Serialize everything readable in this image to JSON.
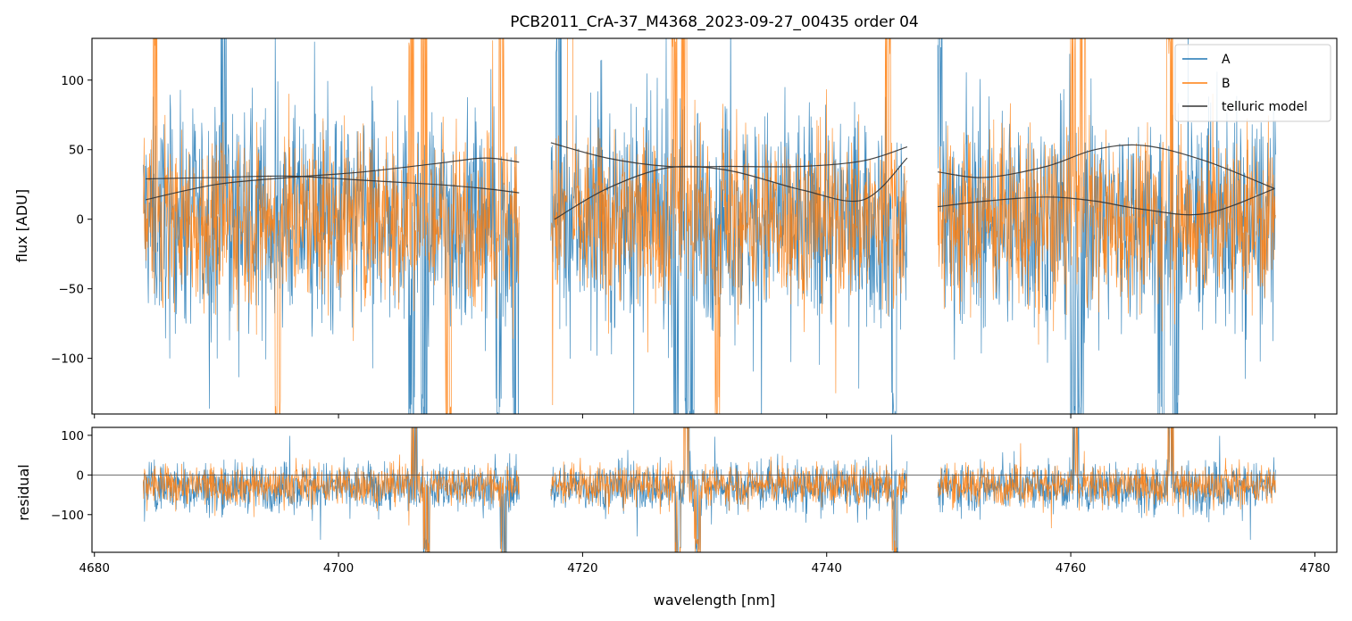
{
  "figure": {
    "title": "PCB2011_CrA-37_M4368_2023-09-27_00435  order 04"
  },
  "chart_data": [
    {
      "type": "line",
      "panel": "flux",
      "title": "PCB2011_CrA-37_M4368_2023-09-27_00435  order 04",
      "xlabel": "",
      "ylabel": "flux [ADU]",
      "xlim": [
        4679.8,
        4781.8
      ],
      "ylim": [
        -140,
        130
      ],
      "yticks": [
        -100,
        -50,
        0,
        50,
        100
      ],
      "ytick_labels": [
        "−100",
        "−50",
        "0",
        "50",
        "100"
      ],
      "xticks": [
        4680,
        4700,
        4720,
        4740,
        4760,
        4780
      ],
      "xtick_labels_shown": false,
      "legend": {
        "placement": "upper right",
        "entries": [
          {
            "label": "A",
            "color": "#1f77b4"
          },
          {
            "label": "B",
            "color": "#ff7f0e"
          },
          {
            "label": "telluric model",
            "color": "#333333"
          }
        ]
      },
      "segments": [
        {
          "x_range": [
            4684.0,
            4714.8
          ]
        },
        {
          "x_range": [
            4717.4,
            4746.6
          ]
        },
        {
          "x_range": [
            4749.1,
            4776.8
          ]
        }
      ],
      "series": [
        {
          "name": "A",
          "color": "#1f77b4",
          "note_amplitude": 70,
          "spikes": [
            {
              "x": 4690.6,
              "y": 130
            },
            {
              "x": 4706.0,
              "y": -140
            },
            {
              "x": 4707.0,
              "y": -140
            },
            {
              "x": 4713.1,
              "y": -140
            },
            {
              "x": 4714.5,
              "y": -140
            },
            {
              "x": 4718.0,
              "y": 130
            },
            {
              "x": 4727.6,
              "y": -140
            },
            {
              "x": 4728.6,
              "y": -140
            },
            {
              "x": 4729.0,
              "y": -140
            },
            {
              "x": 4745.5,
              "y": -140
            },
            {
              "x": 4749.2,
              "y": 130
            },
            {
              "x": 4760.2,
              "y": -140
            },
            {
              "x": 4760.8,
              "y": -140
            },
            {
              "x": 4767.4,
              "y": -140
            },
            {
              "x": 4768.6,
              "y": -140
            }
          ]
        },
        {
          "name": "B",
          "color": "#ff7f0e",
          "note_amplitude": 55,
          "spikes": [
            {
              "x": 4685.0,
              "y": 130
            },
            {
              "x": 4695.0,
              "y": -140
            },
            {
              "x": 4706.0,
              "y": 130
            },
            {
              "x": 4707.0,
              "y": 130
            },
            {
              "x": 4709.0,
              "y": -140
            },
            {
              "x": 4713.3,
              "y": 130
            },
            {
              "x": 4719.0,
              "y": 130
            },
            {
              "x": 4727.5,
              "y": 130
            },
            {
              "x": 4728.3,
              "y": 130
            },
            {
              "x": 4731.0,
              "y": -140
            },
            {
              "x": 4745.0,
              "y": 130
            },
            {
              "x": 4760.2,
              "y": 130
            },
            {
              "x": 4761.0,
              "y": 130
            },
            {
              "x": 4768.1,
              "y": 130
            }
          ]
        },
        {
          "name": "telluric model",
          "color": "#333333",
          "curves": [
            {
              "x": [
                4684.2,
                4690,
                4696,
                4702,
                4708,
                4712,
                4714.8
              ],
              "y": [
                29,
                30,
                31,
                28,
                25,
                22,
                19
              ]
            },
            {
              "x": [
                4684.2,
                4690,
                4696,
                4702,
                4708,
                4712,
                4714.8
              ],
              "y": [
                14,
                25,
                30,
                34,
                40,
                44,
                41
              ]
            },
            {
              "x": [
                4717.4,
                4722,
                4727,
                4732,
                4738,
                4743,
                4746.6
              ],
              "y": [
                55,
                44,
                38,
                38,
                38,
                42,
                52
              ]
            },
            {
              "x": [
                4717.7,
                4722,
                4727,
                4732,
                4738,
                4743,
                4746.6
              ],
              "y": [
                0,
                22,
                37,
                35,
                21,
                14,
                44
              ]
            },
            {
              "x": [
                4749.1,
                4753,
                4758,
                4762,
                4766,
                4771,
                4776.7
              ],
              "y": [
                34,
                30,
                38,
                50,
                53,
                42,
                22
              ]
            },
            {
              "x": [
                4749.1,
                4753,
                4758,
                4762,
                4766,
                4771,
                4776.7
              ],
              "y": [
                9,
                13,
                16,
                13,
                7,
                4,
                22
              ]
            }
          ]
        }
      ]
    },
    {
      "type": "line",
      "panel": "residual",
      "xlabel": "wavelength [nm]",
      "ylabel": "residual",
      "xlim": [
        4679.8,
        4781.8
      ],
      "ylim": [
        -195,
        120
      ],
      "yticks": [
        -100,
        0,
        100
      ],
      "ytick_labels": [
        "−100",
        "0",
        "100"
      ],
      "xticks": [
        4680,
        4700,
        4720,
        4740,
        4760,
        4780
      ],
      "xtick_labels": [
        "4680",
        "4700",
        "4720",
        "4740",
        "4760",
        "4780"
      ],
      "zero_line": 0,
      "series": [
        {
          "name": "A",
          "color": "#1f77b4",
          "center": -30,
          "note_amplitude": 55
        },
        {
          "name": "B",
          "color": "#ff7f0e",
          "center": -25,
          "note_amplitude": 45
        }
      ]
    }
  ]
}
